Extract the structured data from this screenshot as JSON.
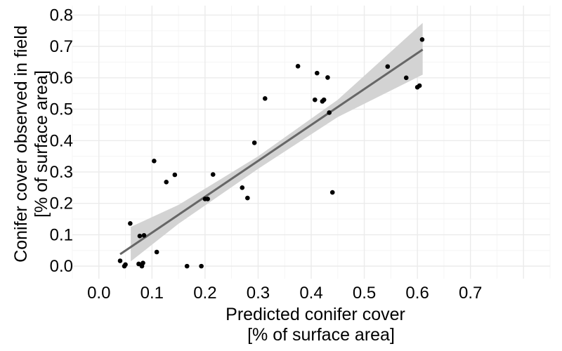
{
  "chart_data": {
    "type": "scatter",
    "title": "",
    "xlabel_lines": [
      "Predicted conifer cover",
      "[% of surface area]"
    ],
    "ylabel_lines": [
      "Conifer cover observed in field",
      "[% of surface area]"
    ],
    "xlim": [
      -0.05,
      0.85
    ],
    "ylim": [
      -0.04,
      0.83
    ],
    "x_ticks": [
      0.0,
      0.1,
      0.2,
      0.3,
      0.4,
      0.5,
      0.6,
      0.7
    ],
    "x_tick_labels": [
      "0.0",
      "0.1",
      "0.2",
      "0.3",
      "0.4",
      "0.5",
      "0.6",
      "0.7"
    ],
    "y_ticks": [
      0.0,
      0.1,
      0.2,
      0.3,
      0.4,
      0.5,
      0.6,
      0.7,
      0.8
    ],
    "y_tick_labels": [
      "0.0",
      "0.1",
      "0.2",
      "0.3",
      "0.4",
      "0.5",
      "0.6",
      "0.7",
      "0.8"
    ],
    "grid": true,
    "legend": "none",
    "colors": {
      "points": "#000000",
      "fit_line": "#666666",
      "confidence_band": "#d3d3d3",
      "grid_major": "#ebebeb",
      "grid_minor": "#f5f5f5"
    },
    "points": [
      {
        "x": 0.04,
        "y": 0.017
      },
      {
        "x": 0.048,
        "y": 0.0
      },
      {
        "x": 0.05,
        "y": 0.005
      },
      {
        "x": 0.059,
        "y": 0.136
      },
      {
        "x": 0.075,
        "y": 0.007
      },
      {
        "x": 0.077,
        "y": 0.096
      },
      {
        "x": 0.081,
        "y": 0.0
      },
      {
        "x": 0.083,
        "y": 0.01
      },
      {
        "x": 0.085,
        "y": 0.098
      },
      {
        "x": 0.104,
        "y": 0.335
      },
      {
        "x": 0.109,
        "y": 0.045
      },
      {
        "x": 0.127,
        "y": 0.268
      },
      {
        "x": 0.143,
        "y": 0.291
      },
      {
        "x": 0.166,
        "y": 0.0
      },
      {
        "x": 0.193,
        "y": 0.0
      },
      {
        "x": 0.2,
        "y": 0.214
      },
      {
        "x": 0.205,
        "y": 0.214
      },
      {
        "x": 0.215,
        "y": 0.292
      },
      {
        "x": 0.27,
        "y": 0.25
      },
      {
        "x": 0.28,
        "y": 0.217
      },
      {
        "x": 0.293,
        "y": 0.393
      },
      {
        "x": 0.313,
        "y": 0.534
      },
      {
        "x": 0.375,
        "y": 0.637
      },
      {
        "x": 0.407,
        "y": 0.53
      },
      {
        "x": 0.411,
        "y": 0.615
      },
      {
        "x": 0.421,
        "y": 0.525
      },
      {
        "x": 0.424,
        "y": 0.53
      },
      {
        "x": 0.431,
        "y": 0.601
      },
      {
        "x": 0.434,
        "y": 0.489
      },
      {
        "x": 0.44,
        "y": 0.235
      },
      {
        "x": 0.544,
        "y": 0.636
      },
      {
        "x": 0.579,
        "y": 0.6
      },
      {
        "x": 0.6,
        "y": 0.57
      },
      {
        "x": 0.604,
        "y": 0.575
      },
      {
        "x": 0.609,
        "y": 0.722
      }
    ],
    "fit_line": {
      "x_start": 0.04,
      "y_start": 0.038,
      "x_end": 0.61,
      "y_end": 0.69
    },
    "confidence_band": [
      {
        "x": 0.06,
        "upper": 0.125,
        "lower": 0.015
      },
      {
        "x": 0.15,
        "upper": 0.195,
        "lower": 0.135
      },
      {
        "x": 0.3,
        "upper": 0.35,
        "lower": 0.31
      },
      {
        "x": 0.45,
        "upper": 0.53,
        "lower": 0.475
      },
      {
        "x": 0.61,
        "upper": 0.775,
        "lower": 0.61
      }
    ]
  }
}
